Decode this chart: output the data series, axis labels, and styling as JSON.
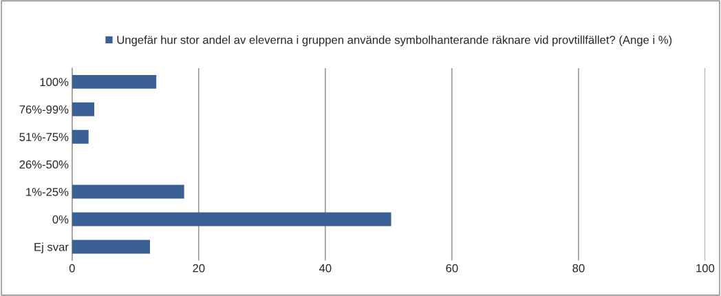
{
  "chart_data": {
    "type": "bar",
    "orientation": "horizontal",
    "categories": [
      "100%",
      "76%-99%",
      "51%-75%",
      "26%-50%",
      "1%-25%",
      "0%",
      "Ej svar"
    ],
    "series": [
      {
        "name": "Ungefär hur stor andel av eleverna i gruppen använde symbolhanterande räknare vid provtillfället? (Ange i %)",
        "color": "#3a5f95",
        "values": [
          13.3,
          3.5,
          2.6,
          0,
          17.7,
          50.4,
          12.3
        ]
      }
    ],
    "xlim": [
      0,
      100
    ],
    "xticks": [
      0,
      20,
      40,
      60,
      80,
      100
    ],
    "grid": "x",
    "legend": "top"
  }
}
